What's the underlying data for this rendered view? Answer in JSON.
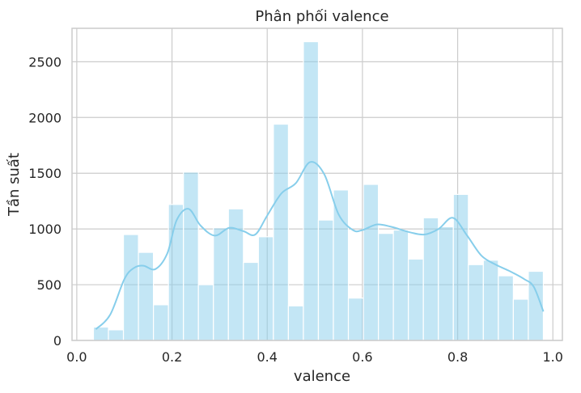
{
  "chart_data": {
    "type": "bar",
    "title": "Phân phối valence",
    "xlabel": "valence",
    "ylabel": "Tần suất",
    "xlim": [
      -0.01,
      1.02
    ],
    "ylim": [
      0,
      2800
    ],
    "xticks": [
      "0.0",
      "0.2",
      "0.4",
      "0.6",
      "0.8",
      "1.0"
    ],
    "yticks": [
      "0",
      "500",
      "1000",
      "1500",
      "2000",
      "2500"
    ],
    "grid": true,
    "colors": {
      "bar": "#87ceeb",
      "kde": "#87ceeb",
      "grid": "#cccccc"
    },
    "bins": {
      "start": 0.035,
      "width": 0.0315
    },
    "values": [
      120,
      95,
      950,
      790,
      320,
      1220,
      1510,
      500,
      1010,
      1180,
      700,
      930,
      1940,
      310,
      2680,
      1080,
      1350,
      380,
      1400,
      960,
      990,
      730,
      1100,
      1020,
      1310,
      680,
      720,
      580,
      370,
      620
    ],
    "kde": {
      "x": [
        0.04,
        0.07,
        0.1,
        0.12,
        0.14,
        0.165,
        0.19,
        0.21,
        0.235,
        0.26,
        0.29,
        0.32,
        0.35,
        0.375,
        0.4,
        0.43,
        0.46,
        0.49,
        0.52,
        0.55,
        0.58,
        0.6,
        0.63,
        0.66,
        0.7,
        0.73,
        0.76,
        0.79,
        0.82,
        0.85,
        0.88,
        0.91,
        0.94,
        0.96,
        0.98
      ],
      "y": [
        100,
        230,
        550,
        650,
        670,
        640,
        780,
        1080,
        1180,
        1030,
        940,
        1010,
        980,
        950,
        1120,
        1320,
        1410,
        1600,
        1490,
        1130,
        990,
        990,
        1040,
        1020,
        970,
        950,
        1000,
        1100,
        940,
        760,
        680,
        620,
        550,
        480,
        260
      ]
    }
  }
}
